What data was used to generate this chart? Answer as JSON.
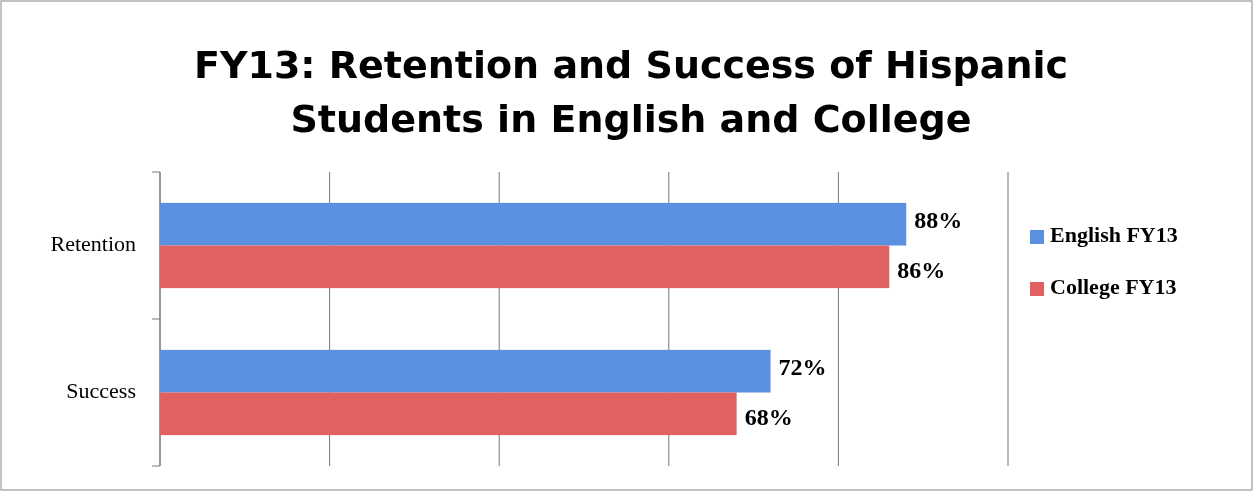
{
  "chart_data": {
    "type": "bar",
    "orientation": "horizontal",
    "title": "FY13: Retention and Success of Hispanic Students in English and College",
    "categories": [
      "Retention",
      "Success"
    ],
    "series": [
      {
        "name": "English FY13",
        "color": "#5b8fe0",
        "values": [
          88,
          72
        ],
        "value_labels": [
          "88%",
          "72%"
        ]
      },
      {
        "name": "College FY13",
        "color": "#e0615f",
        "values": [
          86,
          68
        ],
        "value_labels": [
          "86%",
          "68%"
        ]
      }
    ],
    "xlim": [
      0,
      100
    ],
    "xticks": [
      {
        "value": 0,
        "label": null
      },
      {
        "value": 20,
        "label": null
      },
      {
        "value": 40,
        "label": null
      },
      {
        "value": 60,
        "label": null
      },
      {
        "value": 80,
        "label": null
      },
      {
        "value": 100,
        "label": null
      }
    ],
    "grid": "x",
    "legend": "right",
    "tick_labels": "y"
  }
}
